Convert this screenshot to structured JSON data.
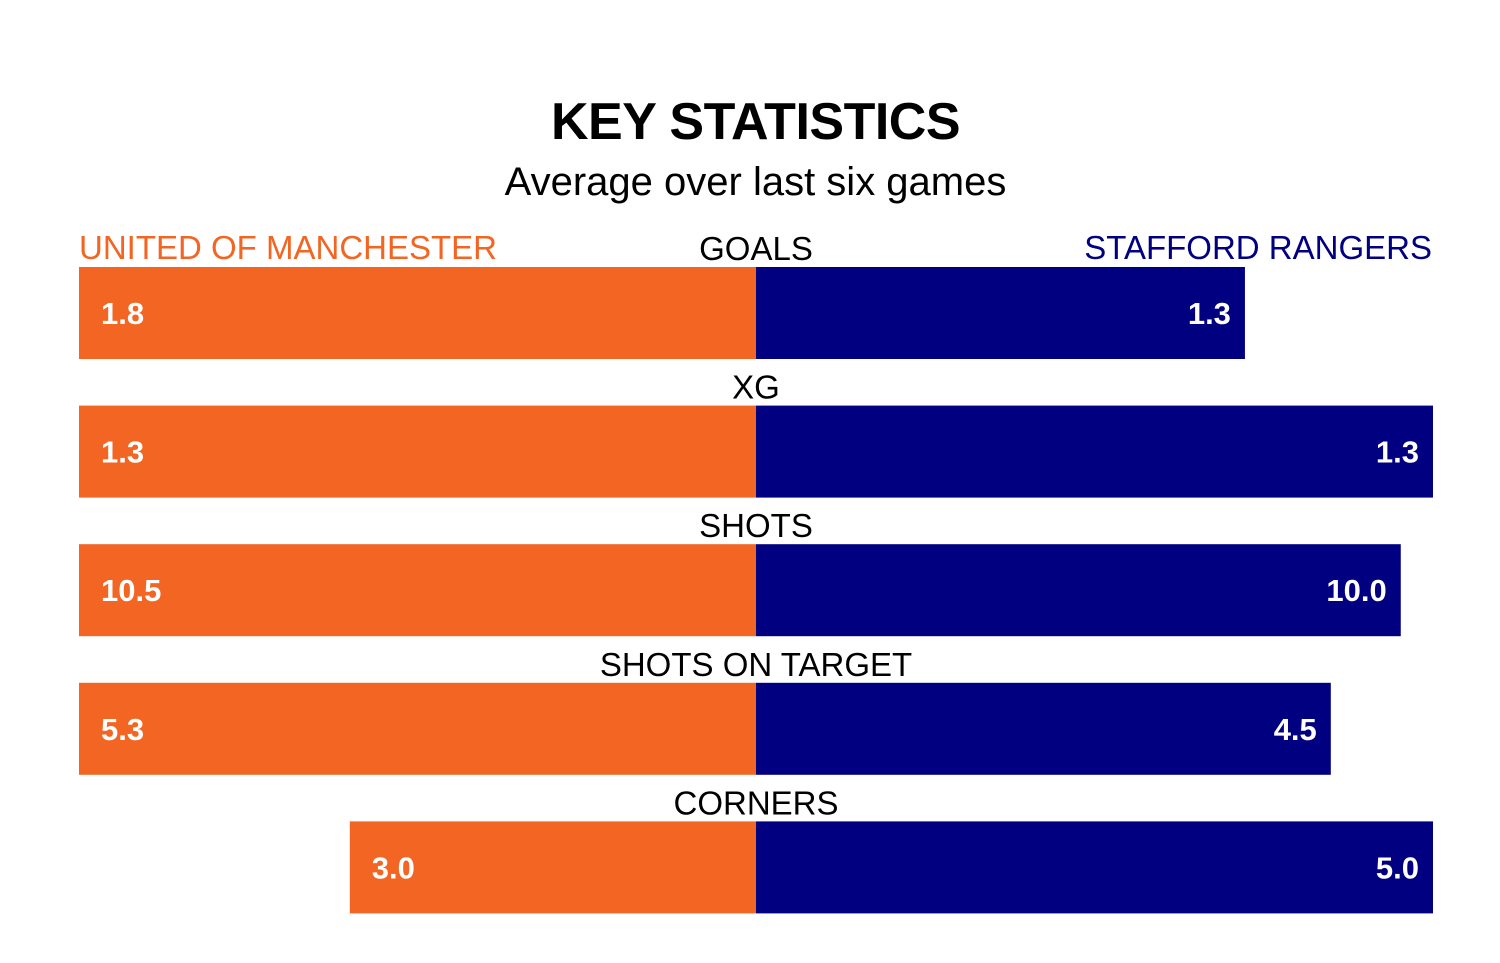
{
  "title": "KEY STATISTICS",
  "subtitle": "Average over last six games",
  "teams": {
    "home": {
      "name": "UNITED OF MANCHESTER",
      "color": "#f26522"
    },
    "away": {
      "name": "STAFFORD RANGERS",
      "color": "#000080"
    }
  },
  "chart_data": {
    "type": "bar",
    "orientation": "horizontal-diverging",
    "categories": [
      "GOALS",
      "XG",
      "SHOTS",
      "SHOTS ON TARGET",
      "CORNERS"
    ],
    "series": [
      {
        "name": "UNITED OF MANCHESTER",
        "color": "#f26522",
        "values": [
          1.8,
          1.3,
          10.5,
          5.3,
          3.0
        ]
      },
      {
        "name": "STAFFORD RANGERS",
        "color": "#000080",
        "values": [
          1.3,
          1.3,
          10.0,
          4.5,
          5.0
        ]
      }
    ],
    "value_labels": [
      [
        "1.8",
        "1.3",
        "10.5",
        "5.3",
        "3.0"
      ],
      [
        "1.3",
        "1.3",
        "10.0",
        "4.5",
        "5.0"
      ]
    ],
    "grid": false,
    "legend": "top"
  }
}
